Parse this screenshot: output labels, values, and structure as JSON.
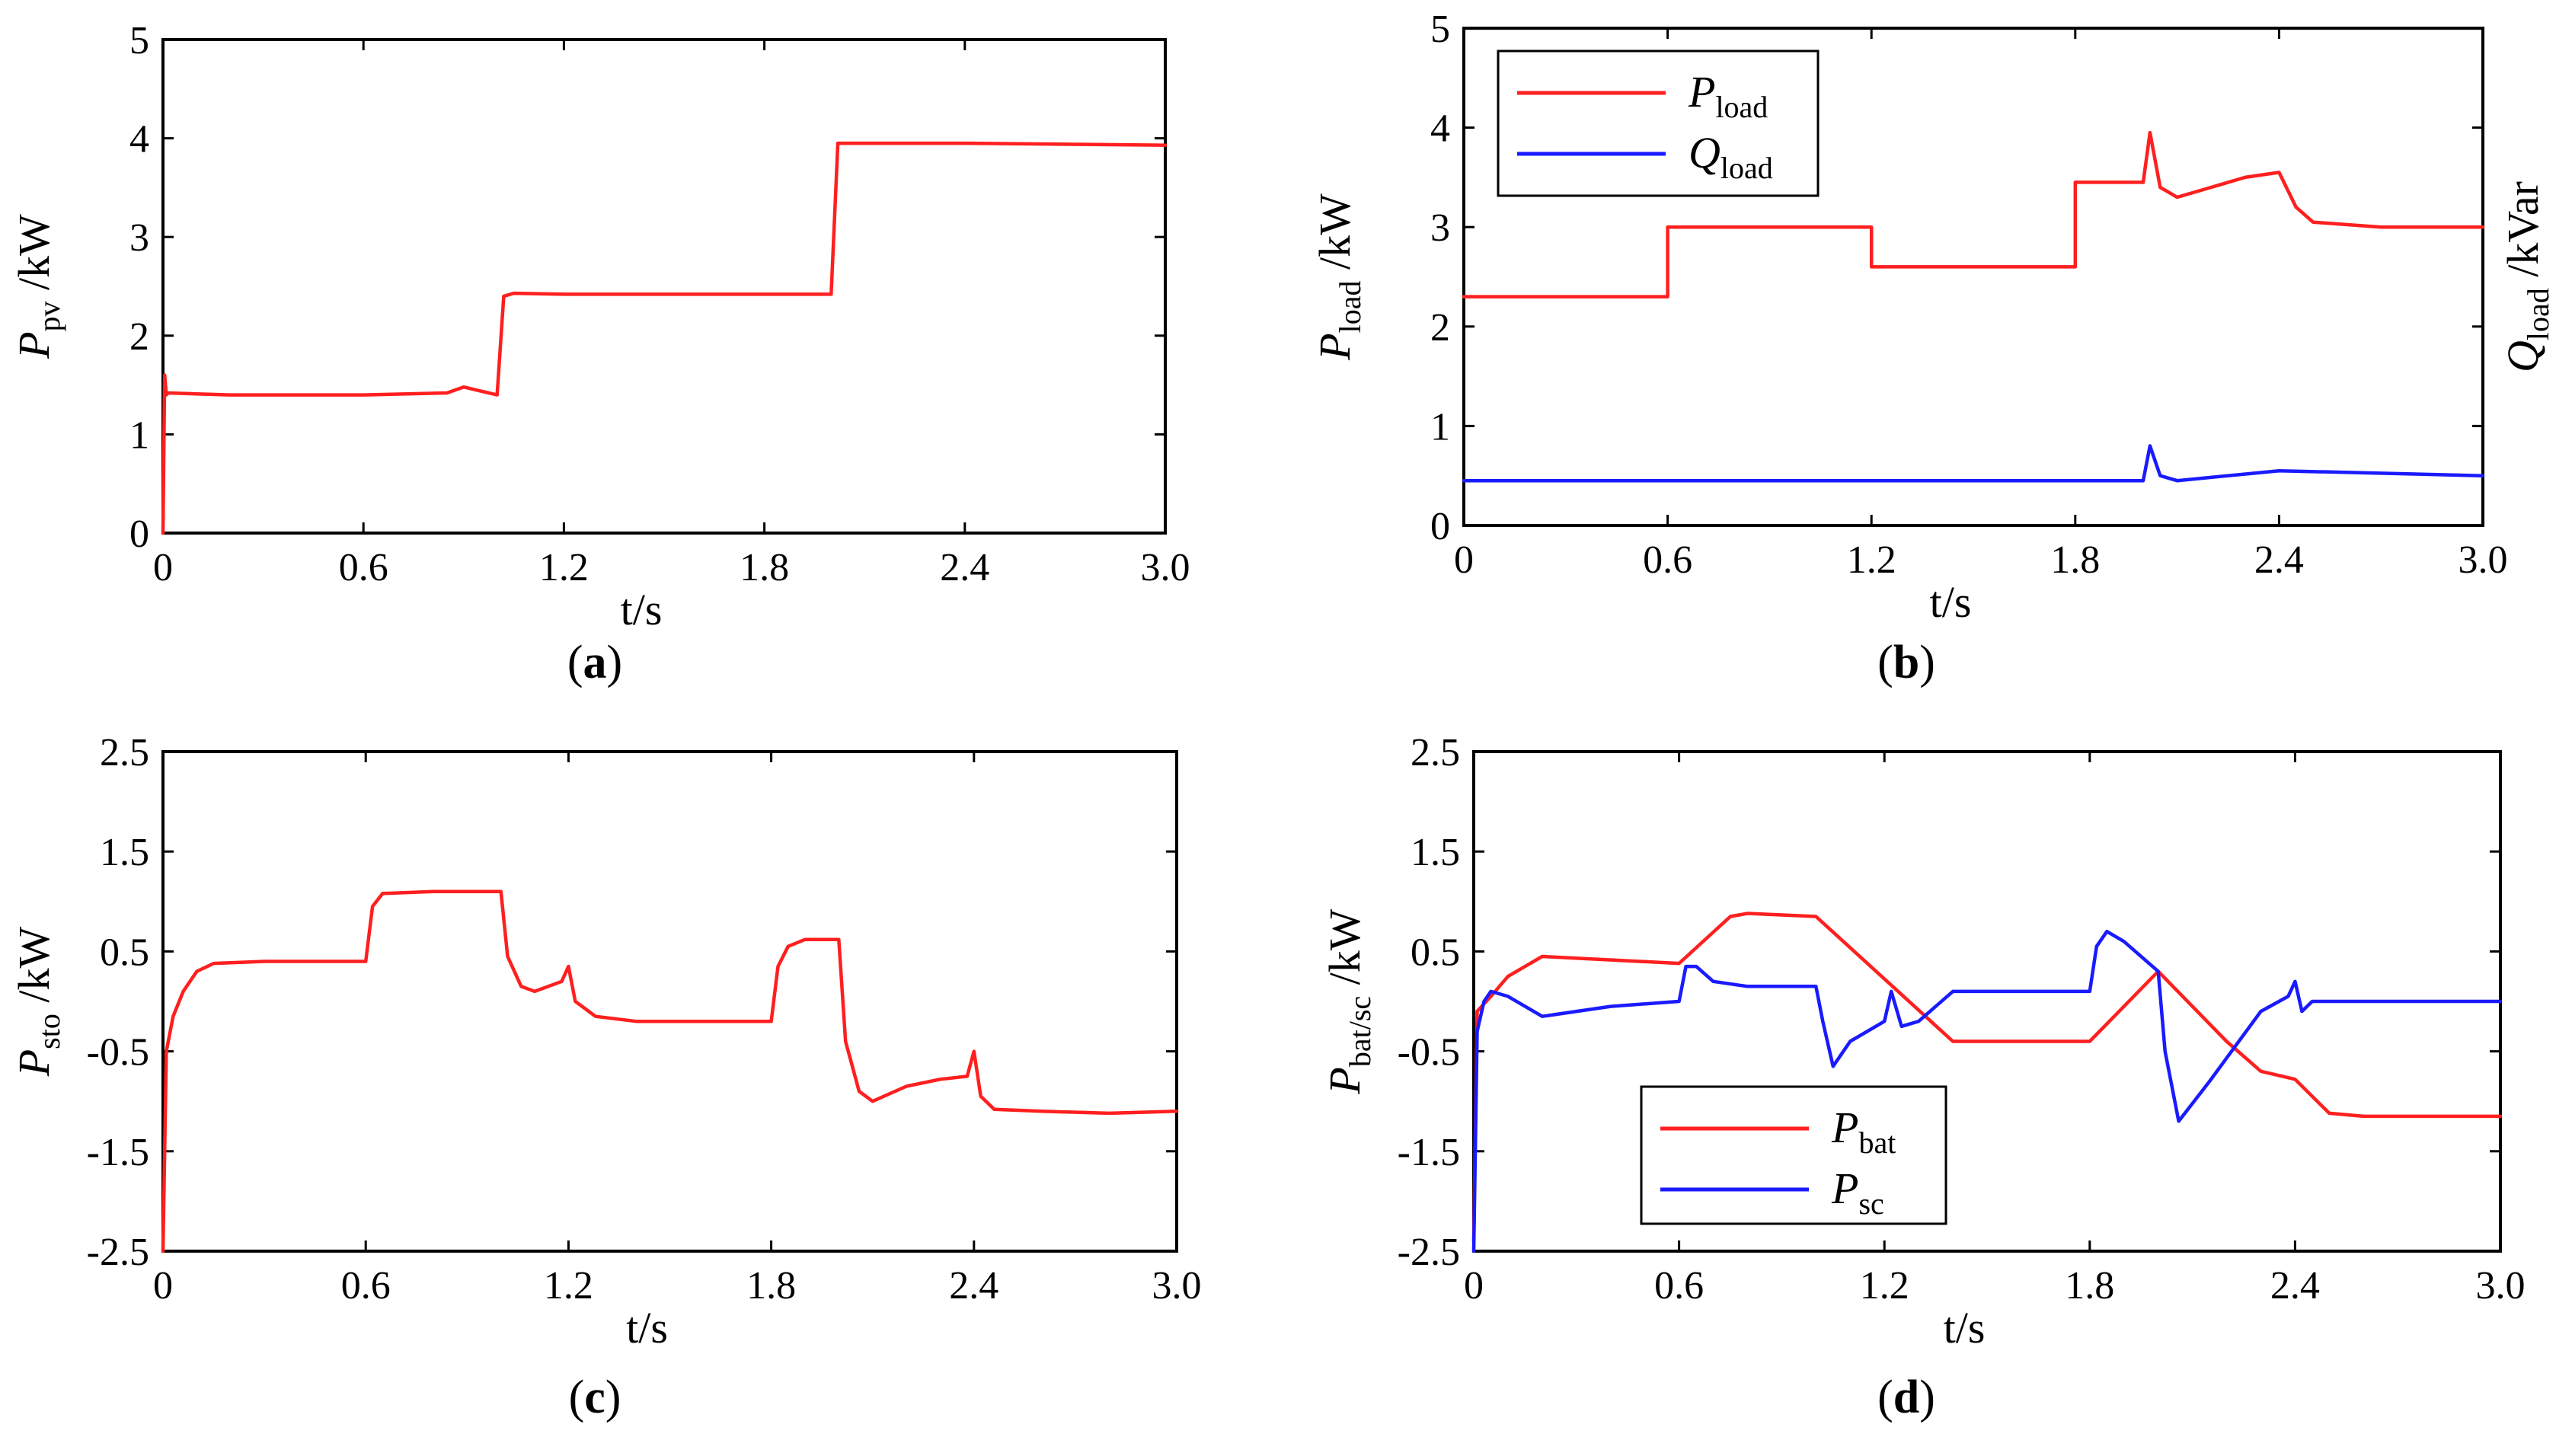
{
  "colors": {
    "red": "#ff1f1f",
    "blue": "#1a1aff"
  },
  "chart_data": [
    {
      "id": "a",
      "type": "line",
      "caption": "a",
      "xlabel": "t/s",
      "ylabel": {
        "main": "P",
        "sub": "pv",
        "unit": " /kW"
      },
      "xlim": [
        0,
        3.0
      ],
      "ylim": [
        0,
        5
      ],
      "xticks": [
        "0",
        "0.6",
        "1.2",
        "1.8",
        "2.4",
        "3.0"
      ],
      "xtick_values": [
        0,
        0.6,
        1.2,
        1.8,
        2.4,
        3.0
      ],
      "yticks": [
        "0",
        "1",
        "2",
        "3",
        "4",
        "5"
      ],
      "ytick_values": [
        0,
        1,
        2,
        3,
        4,
        5
      ],
      "series": [
        {
          "name": "P_pv",
          "color": "red",
          "x": [
            0,
            0.005,
            0.01,
            0.015,
            0.2,
            0.6,
            0.85,
            0.9,
            0.95,
            1.0,
            1.02,
            1.05,
            1.2,
            1.8,
            2.0,
            2.02,
            2.05,
            2.4,
            3.0
          ],
          "y": [
            0,
            1.6,
            1.4,
            1.42,
            1.4,
            1.4,
            1.42,
            1.48,
            1.44,
            1.4,
            2.4,
            2.43,
            2.42,
            2.42,
            2.42,
            3.95,
            3.95,
            3.95,
            3.93
          ]
        }
      ]
    },
    {
      "id": "b",
      "type": "line",
      "caption": "b",
      "xlabel": "t/s",
      "ylabel": {
        "main": "P",
        "sub": "load",
        "unit": " /kW"
      },
      "ylabel_right": {
        "main": "Q",
        "sub": "load",
        "unit": " /kVar"
      },
      "xlim": [
        0,
        3.0
      ],
      "ylim": [
        0,
        5
      ],
      "xticks": [
        "0",
        "0.6",
        "1.2",
        "1.8",
        "2.4",
        "3.0"
      ],
      "xtick_values": [
        0,
        0.6,
        1.2,
        1.8,
        2.4,
        3.0
      ],
      "yticks": [
        "0",
        "1",
        "2",
        "3",
        "4",
        "5"
      ],
      "ytick_values": [
        0,
        1,
        2,
        3,
        4,
        5
      ],
      "legend": {
        "position": "top-left",
        "entries": [
          {
            "main": "P",
            "sub": "load",
            "color": "red"
          },
          {
            "main": "Q",
            "sub": "load",
            "color": "blue"
          }
        ]
      },
      "series": [
        {
          "name": "P_load",
          "color": "red",
          "x": [
            0,
            0.6,
            0.6,
            1.2,
            1.2,
            1.8,
            1.8,
            2.0,
            2.02,
            2.05,
            2.1,
            2.2,
            2.3,
            2.4,
            2.45,
            2.5,
            2.7,
            3.0
          ],
          "y": [
            2.3,
            2.3,
            3.0,
            3.0,
            2.6,
            2.6,
            3.45,
            3.45,
            3.95,
            3.4,
            3.3,
            3.4,
            3.5,
            3.55,
            3.2,
            3.05,
            3.0,
            3.0
          ]
        },
        {
          "name": "Q_load",
          "color": "blue",
          "x": [
            0,
            2.0,
            2.02,
            2.05,
            2.1,
            2.4,
            3.0
          ],
          "y": [
            0.45,
            0.45,
            0.8,
            0.5,
            0.45,
            0.55,
            0.5
          ]
        }
      ]
    },
    {
      "id": "c",
      "type": "line",
      "caption": "c",
      "xlabel": "t/s",
      "ylabel": {
        "main": "P",
        "sub": "sto",
        "unit": " /kW"
      },
      "xlim": [
        0,
        3.0
      ],
      "ylim": [
        -2.5,
        2.5
      ],
      "xticks": [
        "0",
        "0.6",
        "1.2",
        "1.8",
        "2.4",
        "3.0"
      ],
      "xtick_values": [
        0,
        0.6,
        1.2,
        1.8,
        2.4,
        3.0
      ],
      "yticks": [
        "-2.5",
        "-1.5",
        "-0.5",
        "0.5",
        "1.5",
        "2.5"
      ],
      "ytick_values": [
        -2.5,
        -1.5,
        -0.5,
        0.5,
        1.5,
        2.5
      ],
      "series": [
        {
          "name": "P_sto",
          "color": "red",
          "x": [
            0,
            0.01,
            0.03,
            0.06,
            0.1,
            0.15,
            0.3,
            0.6,
            0.62,
            0.65,
            0.8,
            1.0,
            1.02,
            1.06,
            1.1,
            1.18,
            1.2,
            1.22,
            1.28,
            1.4,
            1.6,
            1.8,
            1.82,
            1.85,
            1.9,
            2.0,
            2.02,
            2.06,
            2.1,
            2.2,
            2.3,
            2.38,
            2.4,
            2.42,
            2.46,
            2.6,
            2.8,
            3.0
          ],
          "y": [
            -2.5,
            -0.5,
            -0.15,
            0.1,
            0.3,
            0.38,
            0.4,
            0.4,
            0.95,
            1.08,
            1.1,
            1.1,
            0.45,
            0.15,
            0.1,
            0.2,
            0.35,
            0.0,
            -0.15,
            -0.2,
            -0.2,
            -0.2,
            0.35,
            0.55,
            0.62,
            0.62,
            -0.4,
            -0.9,
            -1.0,
            -0.85,
            -0.78,
            -0.75,
            -0.5,
            -0.95,
            -1.08,
            -1.1,
            -1.12,
            -1.1
          ]
        }
      ]
    },
    {
      "id": "d",
      "type": "line",
      "caption": "d",
      "xlabel": "t/s",
      "ylabel": {
        "main": "P",
        "sub": "bat/sc",
        "unit": " /kW"
      },
      "xlim": [
        0,
        3.0
      ],
      "ylim": [
        -2.5,
        2.5
      ],
      "xticks": [
        "0",
        "0.6",
        "1.2",
        "1.8",
        "2.4",
        "3.0"
      ],
      "xtick_values": [
        0,
        0.6,
        1.2,
        1.8,
        2.4,
        3.0
      ],
      "yticks": [
        "-2.5",
        "-1.5",
        "-0.5",
        "0.5",
        "1.5",
        "2.5"
      ],
      "ytick_values": [
        -2.5,
        -1.5,
        -0.5,
        0.5,
        1.5,
        2.5
      ],
      "legend": {
        "position": "bottom-center",
        "entries": [
          {
            "main": "P",
            "sub": "bat",
            "color": "red"
          },
          {
            "main": "P",
            "sub": "sc",
            "color": "blue"
          }
        ]
      },
      "series": [
        {
          "name": "P_bat",
          "color": "red",
          "x": [
            0,
            0.01,
            0.05,
            0.1,
            0.2,
            0.6,
            0.75,
            0.8,
            1.0,
            1.4,
            1.8,
            2.0,
            2.2,
            2.3,
            2.4,
            2.5,
            2.6,
            3.0
          ],
          "y": [
            -2.4,
            -0.1,
            0.05,
            0.25,
            0.45,
            0.38,
            0.85,
            0.88,
            0.85,
            -0.4,
            -0.4,
            0.3,
            -0.4,
            -0.7,
            -0.78,
            -1.12,
            -1.15,
            -1.15
          ]
        },
        {
          "name": "P_sc",
          "color": "blue",
          "x": [
            0,
            0.01,
            0.03,
            0.05,
            0.1,
            0.2,
            0.4,
            0.6,
            0.62,
            0.65,
            0.7,
            0.8,
            1.0,
            1.02,
            1.05,
            1.1,
            1.2,
            1.22,
            1.25,
            1.3,
            1.4,
            1.6,
            1.8,
            1.82,
            1.85,
            1.9,
            2.0,
            2.02,
            2.06,
            2.15,
            2.3,
            2.38,
            2.4,
            2.42,
            2.45,
            2.6,
            2.8,
            3.0
          ],
          "y": [
            -2.5,
            -0.3,
            0.0,
            0.1,
            0.05,
            -0.15,
            -0.05,
            0.0,
            0.35,
            0.35,
            0.2,
            0.15,
            0.15,
            -0.2,
            -0.65,
            -0.4,
            -0.2,
            0.1,
            -0.25,
            -0.2,
            0.1,
            0.1,
            0.1,
            0.55,
            0.7,
            0.6,
            0.3,
            -0.5,
            -1.2,
            -0.8,
            -0.1,
            0.05,
            0.2,
            -0.1,
            0.0,
            0.0,
            0.0,
            0.0
          ]
        }
      ]
    }
  ]
}
